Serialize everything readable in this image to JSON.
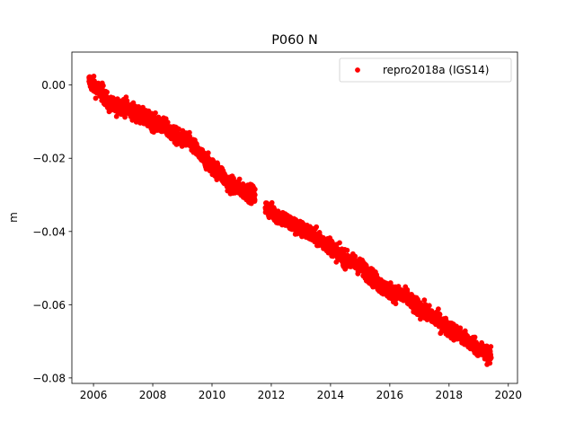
{
  "chart_data": {
    "type": "scatter",
    "title": "P060 N",
    "xlabel": "",
    "ylabel": "m",
    "xlim": [
      2005.27,
      2020.31
    ],
    "ylim": [
      -0.0815,
      0.009
    ],
    "x_ticks": [
      {
        "value": 2006,
        "label": "2006"
      },
      {
        "value": 2008,
        "label": "2008"
      },
      {
        "value": 2010,
        "label": "2010"
      },
      {
        "value": 2012,
        "label": "2012"
      },
      {
        "value": 2014,
        "label": "2014"
      },
      {
        "value": 2016,
        "label": "2016"
      },
      {
        "value": 2018,
        "label": "2018"
      },
      {
        "value": 2020,
        "label": "2020"
      }
    ],
    "y_ticks": [
      {
        "value": 0.0,
        "label": "0.00"
      },
      {
        "value": -0.02,
        "label": "−0.02"
      },
      {
        "value": -0.04,
        "label": "−0.04"
      },
      {
        "value": -0.06,
        "label": "−0.06"
      },
      {
        "value": -0.08,
        "label": "−0.08"
      }
    ],
    "grid": false,
    "legend": {
      "position": "top-right"
    },
    "series": [
      {
        "name": "repro2018a (IGS14)",
        "color": "#ff0000",
        "marker": "circle",
        "data_range": {
          "x_start": 2005.85,
          "x_end": 2019.42
        },
        "points": [
          [
            2005.85,
            0.001
          ],
          [
            2005.95,
            0.0005
          ],
          [
            2006.1,
            -0.001
          ],
          [
            2006.3,
            -0.002
          ],
          [
            2006.5,
            -0.005
          ],
          [
            2006.7,
            -0.006
          ],
          [
            2006.9,
            -0.0055
          ],
          [
            2007.1,
            -0.006
          ],
          [
            2007.3,
            -0.007
          ],
          [
            2007.5,
            -0.008
          ],
          [
            2007.7,
            -0.009
          ],
          [
            2007.9,
            -0.0095
          ],
          [
            2008.1,
            -0.0105
          ],
          [
            2008.3,
            -0.011
          ],
          [
            2008.5,
            -0.012
          ],
          [
            2008.7,
            -0.0135
          ],
          [
            2008.9,
            -0.0145
          ],
          [
            2009.1,
            -0.015
          ],
          [
            2009.3,
            -0.016
          ],
          [
            2009.5,
            -0.018
          ],
          [
            2009.7,
            -0.02
          ],
          [
            2009.9,
            -0.0215
          ],
          [
            2010.1,
            -0.023
          ],
          [
            2010.3,
            -0.024
          ],
          [
            2010.5,
            -0.0265
          ],
          [
            2010.7,
            -0.0275
          ],
          [
            2010.9,
            -0.028
          ],
          [
            2011.1,
            -0.029
          ],
          [
            2011.3,
            -0.0295
          ],
          [
            2011.45,
            -0.03
          ],
          [
            2011.8,
            -0.0335
          ],
          [
            2012.0,
            -0.0345
          ],
          [
            2012.2,
            -0.0355
          ],
          [
            2012.4,
            -0.0365
          ],
          [
            2012.6,
            -0.0375
          ],
          [
            2012.8,
            -0.0385
          ],
          [
            2013.0,
            -0.0395
          ],
          [
            2013.2,
            -0.04
          ],
          [
            2013.4,
            -0.041
          ],
          [
            2013.6,
            -0.042
          ],
          [
            2013.8,
            -0.043
          ],
          [
            2014.0,
            -0.044
          ],
          [
            2014.2,
            -0.0455
          ],
          [
            2014.4,
            -0.047
          ],
          [
            2014.6,
            -0.048
          ],
          [
            2014.8,
            -0.0485
          ],
          [
            2015.0,
            -0.0495
          ],
          [
            2015.2,
            -0.051
          ],
          [
            2015.4,
            -0.0525
          ],
          [
            2015.6,
            -0.054
          ],
          [
            2015.8,
            -0.0555
          ],
          [
            2016.0,
            -0.056
          ],
          [
            2016.2,
            -0.057
          ],
          [
            2016.4,
            -0.0575
          ],
          [
            2016.6,
            -0.058
          ],
          [
            2016.8,
            -0.06
          ],
          [
            2017.0,
            -0.061
          ],
          [
            2017.2,
            -0.062
          ],
          [
            2017.4,
            -0.063
          ],
          [
            2017.6,
            -0.064
          ],
          [
            2017.8,
            -0.0655
          ],
          [
            2018.0,
            -0.0665
          ],
          [
            2018.2,
            -0.0675
          ],
          [
            2018.4,
            -0.0685
          ],
          [
            2018.6,
            -0.07
          ],
          [
            2018.8,
            -0.0705
          ],
          [
            2019.0,
            -0.072
          ],
          [
            2019.2,
            -0.073
          ],
          [
            2019.42,
            -0.0745
          ]
        ]
      }
    ]
  }
}
